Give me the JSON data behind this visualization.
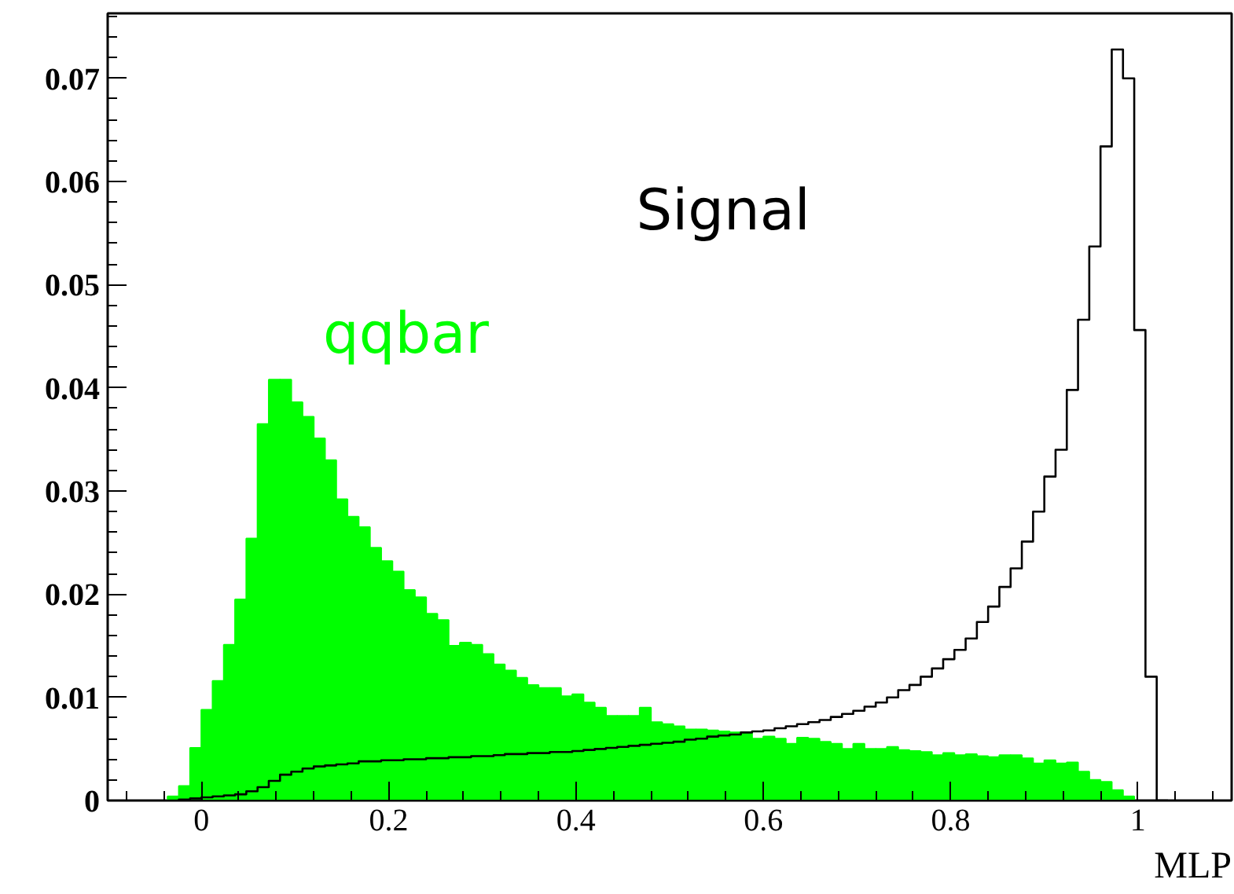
{
  "chart_data": {
    "type": "histogram",
    "xlabel": "MLP",
    "bins": [
      -0.036,
      -0.024,
      -0.012,
      0,
      0.012,
      0.024,
      0.036,
      0.048,
      0.06,
      0.072,
      0.084,
      0.096,
      0.108,
      0.12,
      0.132,
      0.144,
      0.156,
      0.168,
      0.18,
      0.192,
      0.204,
      0.216,
      0.228,
      0.24,
      0.252,
      0.264,
      0.276,
      0.288,
      0.3,
      0.312,
      0.324,
      0.336,
      0.348,
      0.36,
      0.372,
      0.384,
      0.396,
      0.408,
      0.42,
      0.432,
      0.444,
      0.456,
      0.468,
      0.48,
      0.492,
      0.504,
      0.516,
      0.528,
      0.54,
      0.552,
      0.564,
      0.576,
      0.588,
      0.6,
      0.612,
      0.624,
      0.636,
      0.648,
      0.66,
      0.672,
      0.684,
      0.696,
      0.708,
      0.72,
      0.732,
      0.744,
      0.756,
      0.768,
      0.78,
      0.792,
      0.804,
      0.816,
      0.828,
      0.84,
      0.852,
      0.864,
      0.876,
      0.888,
      0.9,
      0.912,
      0.924,
      0.936,
      0.948,
      0.96,
      0.972,
      0.984,
      0.996,
      1.008,
      1.02,
      1.032
    ],
    "series": [
      {
        "name": "qqbar",
        "color": "#00ff00",
        "values": [
          0.0004,
          0.0014,
          0.0051,
          0.0088,
          0.0116,
          0.0151,
          0.0195,
          0.0254,
          0.0365,
          0.0408,
          0.0408,
          0.0386,
          0.0372,
          0.0351,
          0.033,
          0.0292,
          0.0275,
          0.0265,
          0.0245,
          0.0232,
          0.0222,
          0.0204,
          0.0197,
          0.0181,
          0.0175,
          0.015,
          0.0153,
          0.0151,
          0.0142,
          0.0132,
          0.0126,
          0.0119,
          0.0112,
          0.0109,
          0.0109,
          0.0101,
          0.0103,
          0.0095,
          0.009,
          0.0082,
          0.0082,
          0.0082,
          0.009,
          0.0076,
          0.0074,
          0.0072,
          0.0069,
          0.0069,
          0.0068,
          0.0067,
          0.0066,
          0.0066,
          0.006,
          0.0062,
          0.006,
          0.0055,
          0.0061,
          0.006,
          0.0057,
          0.0055,
          0.005,
          0.0055,
          0.005,
          0.005,
          0.0052,
          0.0049,
          0.0048,
          0.0047,
          0.0044,
          0.0046,
          0.0044,
          0.0045,
          0.0043,
          0.0042,
          0.0044,
          0.0044,
          0.0041,
          0.0036,
          0.0039,
          0.0036,
          0.0037,
          0.0028,
          0.002,
          0.0018,
          0.001,
          0.0004,
          0,
          0,
          0
        ]
      },
      {
        "name": "Signal",
        "type": "step",
        "color": "#000000",
        "x": [
          -0.036,
          -0.024,
          -0.012,
          0,
          0.012,
          0.024,
          0.036,
          0.048,
          0.06,
          0.072,
          0.084,
          0.096,
          0.108,
          0.12,
          0.132,
          0.144,
          0.156,
          0.168,
          0.18,
          0.192,
          0.204,
          0.216,
          0.228,
          0.24,
          0.252,
          0.264,
          0.276,
          0.288,
          0.3,
          0.312,
          0.324,
          0.336,
          0.348,
          0.36,
          0.372,
          0.384,
          0.396,
          0.408,
          0.42,
          0.432,
          0.444,
          0.456,
          0.468,
          0.48,
          0.492,
          0.504,
          0.516,
          0.528,
          0.54,
          0.552,
          0.564,
          0.576,
          0.588,
          0.6,
          0.612,
          0.624,
          0.636,
          0.648,
          0.66,
          0.672,
          0.684,
          0.696,
          0.708,
          0.72,
          0.732,
          0.744,
          0.756,
          0.768,
          0.78,
          0.792,
          0.804,
          0.816,
          0.828,
          0.84,
          0.852,
          0.864,
          0.876,
          0.888,
          0.9,
          0.912,
          0.924,
          0.936,
          0.948,
          0.96,
          0.972,
          0.984,
          0.996,
          1.008,
          1.02,
          1.032
        ],
        "values": [
          0,
          0.0001,
          0.0002,
          0.0003,
          0.0004,
          0.0005,
          0.0006,
          0.0009,
          0.0013,
          0.0019,
          0.0025,
          0.0028,
          0.0031,
          0.0033,
          0.0034,
          0.0035,
          0.0036,
          0.0038,
          0.0038,
          0.0039,
          0.0039,
          0.004,
          0.004,
          0.0041,
          0.0041,
          0.0042,
          0.0042,
          0.0043,
          0.0043,
          0.0044,
          0.0045,
          0.0045,
          0.0046,
          0.0046,
          0.0047,
          0.0047,
          0.0048,
          0.0049,
          0.005,
          0.0051,
          0.0052,
          0.0053,
          0.0054,
          0.0055,
          0.0056,
          0.0057,
          0.0059,
          0.006,
          0.0062,
          0.0063,
          0.0064,
          0.0066,
          0.0067,
          0.0068,
          0.007,
          0.0072,
          0.0074,
          0.0076,
          0.0078,
          0.0081,
          0.0084,
          0.0087,
          0.0091,
          0.0095,
          0.01,
          0.0107,
          0.0112,
          0.012,
          0.0128,
          0.0137,
          0.0146,
          0.0157,
          0.0173,
          0.0188,
          0.0207,
          0.0225,
          0.0251,
          0.028,
          0.0314,
          0.034,
          0.0398,
          0.0466,
          0.0537,
          0.0634,
          0.0728,
          0.07,
          0.0456,
          0.012,
          0,
          0
        ]
      }
    ],
    "xlim": [
      -0.1,
      1.1
    ],
    "ylim": [
      0,
      0.0763
    ],
    "xticks": [
      0,
      0.2,
      0.4,
      0.6,
      0.8,
      1
    ],
    "yticks": [
      0,
      0.01,
      0.02,
      0.03,
      0.04,
      0.05,
      0.06,
      0.07
    ],
    "grid": false,
    "legend": false
  }
}
